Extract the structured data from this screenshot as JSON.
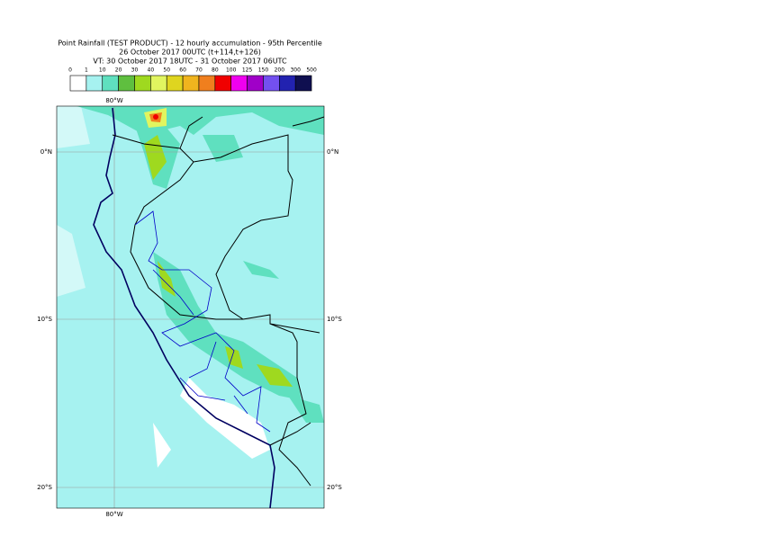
{
  "header": {
    "title": "Point Rainfall (TEST PRODUCT) - 12 hourly accumulation - 95th Percentile",
    "base_time": "26 October 2017 00UTC (t+114,t+126)",
    "valid_time": "VT: 30 October 2017 18UTC - 31 October 2017 06UTC"
  },
  "legend": {
    "labels": [
      "0",
      "1",
      "10",
      "20",
      "30",
      "40",
      "50",
      "60",
      "70",
      "80",
      "100",
      "125",
      "150",
      "200",
      "300",
      "500"
    ],
    "colors": [
      "#ffffff",
      "#a6f2f0",
      "#5fe0bf",
      "#5fbf3f",
      "#9fd91f",
      "#e1f55f",
      "#dfd51f",
      "#f0b41e",
      "#f07f1e",
      "#f00000",
      "#f000f0",
      "#a000c8",
      "#7350f0",
      "#2222b0",
      "#0f0f50"
    ]
  },
  "map": {
    "lon_label_top": "80°W",
    "lon_label_bottom": "80°W",
    "lat_labels_left": [
      "0°N",
      "10°S",
      "20°S"
    ],
    "lat_labels_right": [
      "0°N",
      "10°S",
      "20°S"
    ]
  }
}
